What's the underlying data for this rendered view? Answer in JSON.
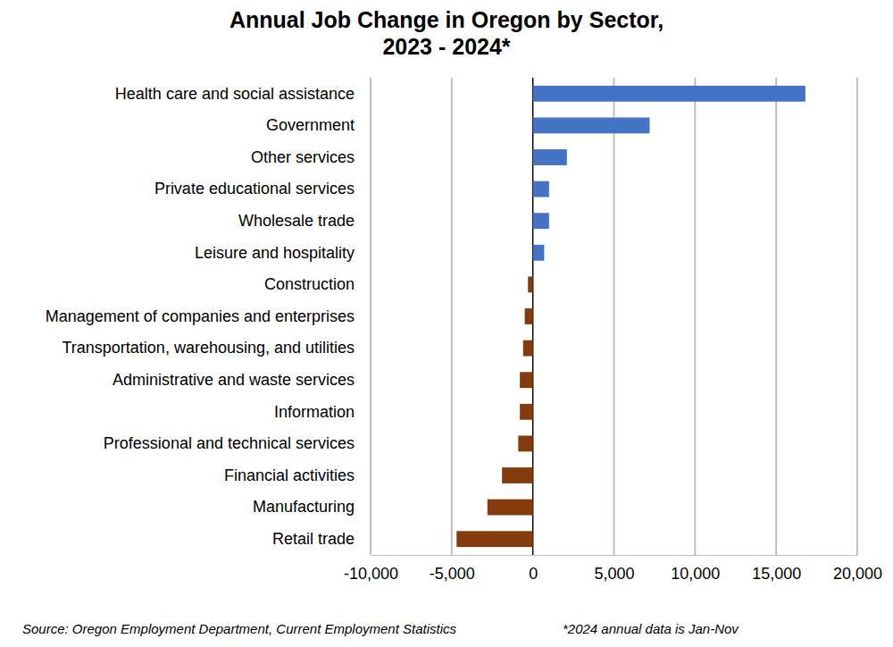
{
  "chart_data": {
    "type": "bar",
    "orientation": "horizontal",
    "title": [
      "Annual Job Change in Oregon by Sector,",
      "2023 - 2024*"
    ],
    "categories": [
      "Health care and social assistance",
      "Government",
      "Other services",
      "Private educational services",
      "Wholesale trade",
      "Leisure and hospitality",
      "Construction",
      "Management of companies and enterprises",
      "Transportation, warehousing, and utilities",
      "Administrative and waste services",
      "Information",
      "Professional and technical services",
      "Financial activities",
      "Manufacturing",
      "Retail trade"
    ],
    "values": [
      16800,
      7200,
      2100,
      1000,
      1000,
      700,
      -300,
      -500,
      -600,
      -800,
      -800,
      -900,
      -1900,
      -2800,
      -4700
    ],
    "colors": [
      "#4472c4",
      "#4472c4",
      "#4472c4",
      "#4472c4",
      "#4472c4",
      "#4472c4",
      "#843c0c",
      "#843c0c",
      "#843c0c",
      "#843c0c",
      "#843c0c",
      "#843c0c",
      "#843c0c",
      "#843c0c",
      "#843c0c"
    ],
    "xlim": [
      -10000,
      20000
    ],
    "xticks": [
      {
        "value": -10000,
        "label": "-10,000"
      },
      {
        "value": -5000,
        "label": "-5,000"
      },
      0,
      {
        "value": 5000,
        "label": "5,000"
      },
      {
        "value": 10000,
        "label": "10,000"
      },
      {
        "value": 15000,
        "label": "15,000"
      },
      {
        "value": 20000,
        "label": "20,000"
      }
    ],
    "grid": true,
    "annotations": [
      "Source: Oregon Employment Department, Current Employment Statistics",
      "*2024 annual data is Jan-Nov"
    ]
  }
}
